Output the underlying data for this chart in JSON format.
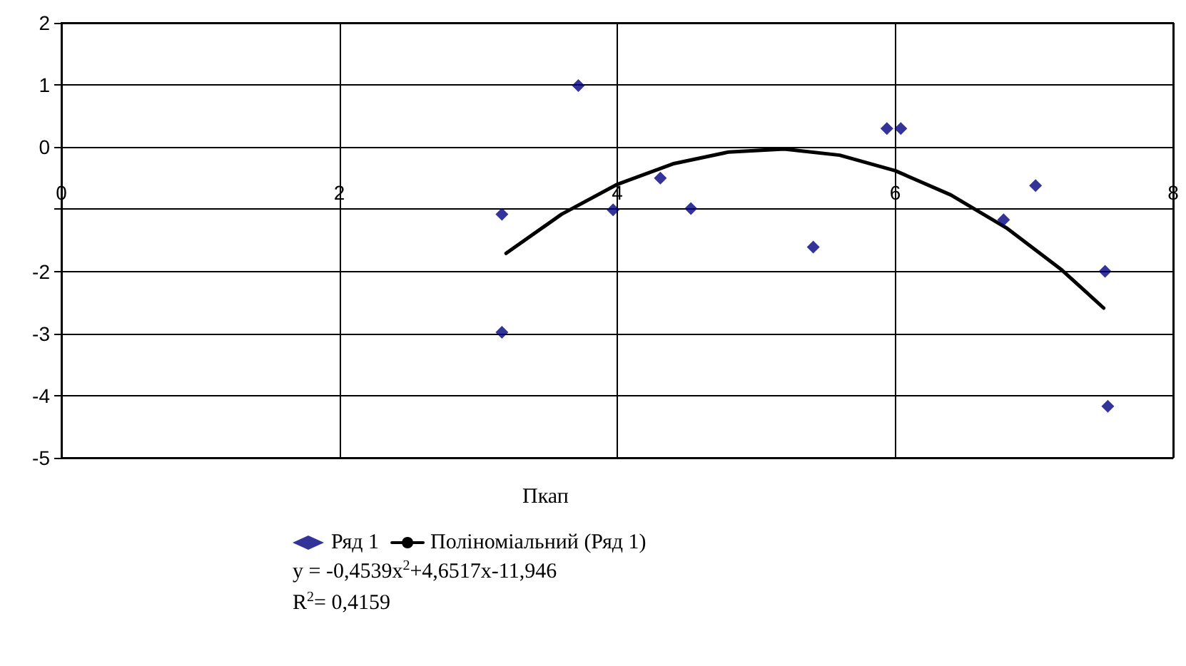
{
  "chart_data": {
    "type": "scatter",
    "xlabel": "Пкап",
    "annotations": [
      "y = -0,4539x$^{2}$+4,6517x-11,946",
      "R$^{2}$= 0,4159"
    ],
    "series": [
      {
        "name": "Ряд 1",
        "color": "#000080",
        "marker": "diamond",
        "x": [
          3.17,
          3.17,
          3.72,
          3.97,
          4.31,
          4.53,
          5.41,
          5.94,
          6.04,
          6.78,
          7.01,
          7.51,
          7.53
        ],
        "values": [
          -1.08,
          -2.98,
          0.99,
          -1.01,
          -0.5,
          -0.99,
          -1.61,
          0.3,
          0.3,
          -1.17,
          -0.62,
          -2.0,
          -4.17
        ]
      },
      {
        "name": "Поліноміальний (Ряд 1)",
        "type": "line",
        "color": "#000000",
        "marker": "none",
        "line_style": "solid",
        "x": [
          3.2,
          3.6,
          4.0,
          4.4,
          4.8,
          5.2,
          5.6,
          6.0,
          6.4,
          6.8,
          7.2,
          7.5
        ],
        "values": [
          -1.71,
          -1.08,
          -0.6,
          -0.27,
          -0.08,
          -0.03,
          -0.13,
          -0.38,
          -0.77,
          -1.3,
          -1.98,
          -2.59
        ]
      }
    ],
    "xlim": [
      0,
      8
    ],
    "xticks": [
      0,
      2,
      4,
      6,
      8
    ],
    "ylim": [
      -5,
      2
    ],
    "yticks": [
      -5,
      -4,
      -3,
      -2,
      {
        "value": -1,
        "label": null
      },
      0,
      1,
      2
    ],
    "grid": true,
    "legend": "bottom"
  }
}
